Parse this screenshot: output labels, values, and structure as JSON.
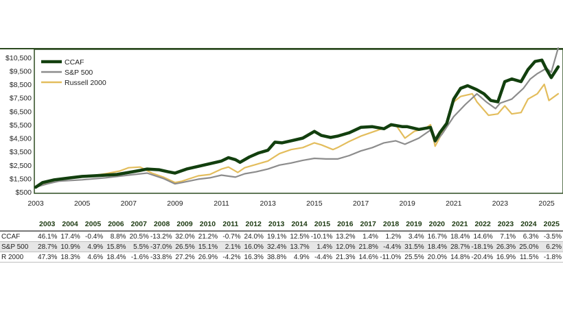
{
  "colors": {
    "ccaf": "#123f0e",
    "sp500": "#8c8c8c",
    "russell": "#e3bd5c",
    "frame": "#2b4a1f",
    "header_text": "#1d3a12"
  },
  "chart_data": {
    "type": "line",
    "ylabel": "",
    "xlabel": "",
    "ylim": [
      500,
      11000
    ],
    "xlim": [
      2003,
      2025.5
    ],
    "y_ticks": [
      "$500",
      "$1,500",
      "$2,500",
      "$3,500",
      "$4,500",
      "$5,500",
      "$6,500",
      "$7,500",
      "$8,500",
      "$9,500",
      "$10,500"
    ],
    "y_tick_values": [
      500,
      1500,
      2500,
      3500,
      4500,
      5500,
      6500,
      7500,
      8500,
      9500,
      10500
    ],
    "x_ticks": [
      "2003",
      "2005",
      "2007",
      "2009",
      "2011",
      "2013",
      "2015",
      "2017",
      "2019",
      "2021",
      "2023",
      "2025"
    ],
    "x_tick_values": [
      2003,
      2005,
      2007,
      2009,
      2011,
      2013,
      2015,
      2017,
      2019,
      2021,
      2023,
      2025
    ],
    "legend": "top-left",
    "grid": false,
    "series": [
      {
        "name": "CCAF",
        "color": "#123f0e",
        "x": [
          2003.0,
          2003.3,
          2003.8,
          2004.5,
          2005.0,
          2005.5,
          2006.0,
          2006.5,
          2007.0,
          2007.5,
          2007.8,
          2008.3,
          2008.7,
          2009.0,
          2009.5,
          2010.0,
          2010.5,
          2011.0,
          2011.3,
          2011.6,
          2011.8,
          2012.2,
          2012.6,
          2013.0,
          2013.3,
          2013.6,
          2014.0,
          2014.5,
          2015.0,
          2015.3,
          2015.7,
          2016.0,
          2016.5,
          2017.0,
          2017.5,
          2018.0,
          2018.3,
          2018.8,
          2019.0,
          2019.5,
          2020.0,
          2020.2,
          2020.4,
          2020.7,
          2021.0,
          2021.3,
          2021.6,
          2022.0,
          2022.3,
          2022.6,
          2022.9,
          2023.2,
          2023.5,
          2023.9,
          2024.2,
          2024.5,
          2024.8,
          2025.0,
          2025.2,
          2025.5
        ],
        "y": [
          850,
          1200,
          1400,
          1550,
          1650,
          1700,
          1750,
          1800,
          1950,
          2100,
          2200,
          2150,
          2000,
          1900,
          2200,
          2400,
          2600,
          2800,
          3050,
          2900,
          2700,
          3100,
          3400,
          3600,
          4200,
          4150,
          4300,
          4500,
          5000,
          4700,
          4550,
          4650,
          4900,
          5300,
          5350,
          5200,
          5500,
          5350,
          5350,
          5150,
          5300,
          4300,
          4900,
          5600,
          7400,
          8200,
          8400,
          8100,
          7800,
          7300,
          7200,
          8700,
          8900,
          8700,
          9600,
          10200,
          10300,
          9600,
          9000,
          9800
        ]
      },
      {
        "name": "S&P 500",
        "color": "#8c8c8c",
        "x": [
          2003.0,
          2003.5,
          2004.0,
          2005.0,
          2006.0,
          2007.0,
          2007.8,
          2008.5,
          2009.0,
          2009.3,
          2010.0,
          2010.5,
          2011.0,
          2011.6,
          2012.0,
          2012.5,
          2013.0,
          2013.5,
          2014.0,
          2014.5,
          2015.0,
          2015.5,
          2016.0,
          2016.5,
          2017.0,
          2017.5,
          2018.0,
          2018.5,
          2018.9,
          2019.5,
          2020.0,
          2020.2,
          2020.5,
          2021.0,
          2021.5,
          2022.0,
          2022.4,
          2022.8,
          2023.0,
          2023.5,
          2024.0,
          2024.3,
          2024.6,
          2025.0,
          2025.2,
          2025.5
        ],
        "y": [
          850,
          1100,
          1300,
          1400,
          1550,
          1750,
          1900,
          1500,
          1100,
          1200,
          1450,
          1550,
          1750,
          1600,
          1850,
          2000,
          2200,
          2500,
          2650,
          2850,
          3000,
          2950,
          2950,
          3200,
          3550,
          3800,
          4150,
          4300,
          4050,
          4500,
          5100,
          4200,
          4800,
          6100,
          7000,
          7800,
          7200,
          6700,
          7100,
          7400,
          8200,
          8900,
          9300,
          9700,
          9400,
          11200
        ]
      },
      {
        "name": "Russell 2000",
        "color": "#e3bd5c",
        "x": [
          2003.0,
          2003.5,
          2004.0,
          2005.0,
          2006.0,
          2006.6,
          2007.0,
          2007.5,
          2008.0,
          2008.5,
          2009.0,
          2009.3,
          2010.0,
          2010.5,
          2011.0,
          2011.3,
          2011.7,
          2012.0,
          2012.5,
          2013.0,
          2013.5,
          2014.0,
          2014.5,
          2015.0,
          2015.3,
          2015.8,
          2016.0,
          2016.5,
          2017.0,
          2017.5,
          2018.0,
          2018.5,
          2018.9,
          2019.3,
          2019.8,
          2020.0,
          2020.2,
          2020.6,
          2021.0,
          2021.3,
          2021.8,
          2022.0,
          2022.5,
          2022.9,
          2023.2,
          2023.5,
          2023.9,
          2024.2,
          2024.6,
          2024.9,
          2025.1,
          2025.5
        ],
        "y": [
          850,
          1200,
          1450,
          1600,
          1850,
          2050,
          2300,
          2350,
          1900,
          1600,
          1200,
          1300,
          1700,
          1800,
          2200,
          2350,
          1950,
          2300,
          2550,
          2800,
          3350,
          3650,
          3800,
          4150,
          4000,
          3650,
          3800,
          4250,
          4650,
          4950,
          5250,
          5500,
          4500,
          5000,
          5250,
          5500,
          3900,
          5200,
          7200,
          7600,
          7800,
          7200,
          6200,
          6300,
          6900,
          6300,
          6400,
          7400,
          7800,
          8500,
          7300,
          7800
        ]
      }
    ]
  },
  "table": {
    "years": [
      "2003",
      "2004",
      "2005",
      "2006",
      "2007",
      "2008",
      "2009",
      "2010",
      "2011",
      "2012",
      "2013",
      "2014",
      "2015",
      "2016",
      "2017",
      "2018",
      "2019",
      "2020",
      "2021",
      "2022",
      "2023",
      "2024",
      "2025"
    ],
    "rows": [
      {
        "label": "CCAF",
        "values": [
          "46.1%",
          "17.4%",
          "-0.4%",
          "8.8%",
          "20.5%",
          "-13.2%",
          "32.0%",
          "21.2%",
          "-0.7%",
          "24.0%",
          "19.1%",
          "12.5%",
          "-10.1%",
          "13.2%",
          "1.4%",
          "1.2%",
          "3.4%",
          "16.7%",
          "18.4%",
          "14.6%",
          "7.1%",
          "6.3%",
          "-3.5%"
        ]
      },
      {
        "label": "S&P 500",
        "values": [
          "28.7%",
          "10.9%",
          "4.9%",
          "15.8%",
          "5.5%",
          "-37.0%",
          "26.5%",
          "15.1%",
          "2.1%",
          "16.0%",
          "32.4%",
          "13.7%",
          "1.4%",
          "12.0%",
          "21.8%",
          "-4.4%",
          "31.5%",
          "18.4%",
          "28.7%",
          "-18.1%",
          "26.3%",
          "25.0%",
          "6.2%"
        ]
      },
      {
        "label": "R 2000",
        "values": [
          "47.3%",
          "18.3%",
          "4.6%",
          "18.4%",
          "-1.6%",
          "-33.8%",
          "27.2%",
          "26.9%",
          "-4.2%",
          "16.3%",
          "38.8%",
          "4.9%",
          "-4.4%",
          "21.3%",
          "14.6%",
          "-11.0%",
          "25.5%",
          "20.0%",
          "14.8%",
          "-20.4%",
          "16.9%",
          "11.5%",
          "-1.8%"
        ]
      }
    ]
  }
}
